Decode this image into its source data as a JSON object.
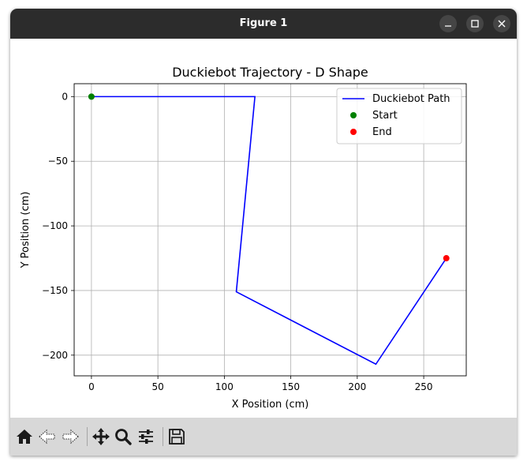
{
  "window": {
    "title": "Figure 1"
  },
  "titlebar_buttons": [
    {
      "icon": "minimize-icon"
    },
    {
      "icon": "maximize-icon"
    },
    {
      "icon": "close-icon"
    }
  ],
  "toolbar": {
    "buttons": [
      {
        "icon": "home-icon"
      },
      {
        "icon": "back-arrow-icon"
      },
      {
        "icon": "forward-arrow-icon"
      },
      {
        "icon": "pan-icon"
      },
      {
        "icon": "zoom-icon"
      },
      {
        "icon": "configure-subplots-icon"
      },
      {
        "icon": "save-icon"
      }
    ]
  },
  "chart_data": {
    "type": "line",
    "title": "Duckiebot Trajectory - D Shape",
    "xlabel": "X Position (cm)",
    "ylabel": "Y Position (cm)",
    "xlim": [
      -13,
      282
    ],
    "ylim": [
      -216,
      10
    ],
    "xticks": [
      0,
      50,
      100,
      150,
      200,
      250
    ],
    "yticks": [
      0,
      -50,
      -100,
      -150,
      -200
    ],
    "xtick_labels": [
      "0",
      "50",
      "100",
      "150",
      "200",
      "250"
    ],
    "ytick_labels": [
      "0",
      "−50",
      "−100",
      "−150",
      "−200"
    ],
    "grid": true,
    "legend_position": "top-right",
    "series": [
      {
        "name": "Duckiebot Path",
        "kind": "line",
        "color": "#0000ff",
        "x": [
          0,
          123,
          109,
          214,
          267
        ],
        "y": [
          0,
          0,
          -151,
          -207,
          -125
        ]
      },
      {
        "name": "Start",
        "kind": "scatter",
        "color": "#008000",
        "x": [
          0
        ],
        "y": [
          0
        ]
      },
      {
        "name": "End",
        "kind": "scatter",
        "color": "#ff0000",
        "x": [
          267
        ],
        "y": [
          -125
        ]
      }
    ]
  }
}
